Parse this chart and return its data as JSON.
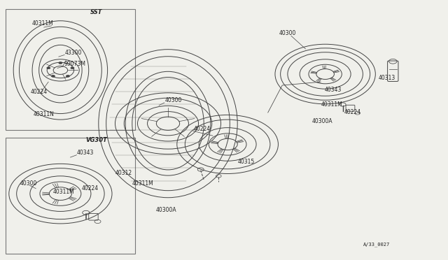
{
  "bg_color": "#f0f0eb",
  "line_color": "#444444",
  "text_color": "#222222",
  "border_color": "#777777",
  "fig_width": 6.4,
  "fig_height": 3.72,
  "dpi": 100,
  "diagram_ref": "A/33_0027",
  "sst_label": "SST",
  "vg30t_label": "VG30T",
  "label_fs": 5.5,
  "header_fs": 6.0
}
